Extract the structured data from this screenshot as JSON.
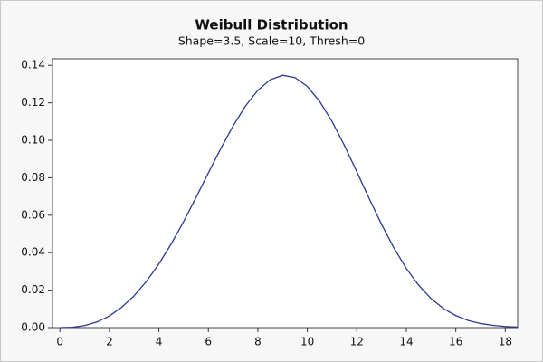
{
  "chart_data": {
    "type": "line",
    "title": "Weibull Distribution",
    "subtitle": "Shape=3.5, Scale=10, Thresh=0",
    "x": [
      0,
      0.5,
      1,
      1.5,
      2,
      2.5,
      3,
      3.5,
      4,
      4.5,
      5,
      5.5,
      6,
      6.5,
      7,
      7.5,
      8,
      8.5,
      9,
      9.5,
      10,
      10.5,
      11,
      11.5,
      12,
      12.5,
      13,
      13.5,
      14,
      14.5,
      15,
      15.5,
      16,
      16.5,
      17,
      17.5,
      18,
      18.5
    ],
    "series": [
      {
        "name": "Weibull",
        "color": "#2b3990",
        "values": [
          0,
          0.0002,
          0.0011,
          0.003,
          0.0062,
          0.0109,
          0.017,
          0.0247,
          0.034,
          0.0447,
          0.0566,
          0.0694,
          0.0826,
          0.0955,
          0.1077,
          0.1183,
          0.1267,
          0.1323,
          0.1347,
          0.1335,
          0.1288,
          0.1207,
          0.11,
          0.0972,
          0.0832,
          0.0689,
          0.0551,
          0.0425,
          0.0316,
          0.0226,
          0.0155,
          0.0102,
          0.0064,
          0.0038,
          0.0022,
          0.0012,
          0.0006,
          0.0003
        ]
      }
    ],
    "xlim": [
      -0.3,
      18.5
    ],
    "xticks": [
      0,
      2,
      4,
      6,
      8,
      10,
      12,
      14,
      16,
      18
    ],
    "ylim": [
      0,
      0.1435
    ],
    "yticks": [
      {
        "value": 0,
        "label": "0.00"
      },
      {
        "value": 0.02,
        "label": "0.02"
      },
      {
        "value": 0.04,
        "label": "0.04"
      },
      {
        "value": 0.06,
        "label": "0.06"
      },
      {
        "value": 0.08,
        "label": "0.08"
      },
      {
        "value": 0.1,
        "label": "0.10"
      },
      {
        "value": 0.12,
        "label": "0.12"
      },
      {
        "value": 0.14,
        "label": "0.14"
      }
    ],
    "grid": false
  }
}
